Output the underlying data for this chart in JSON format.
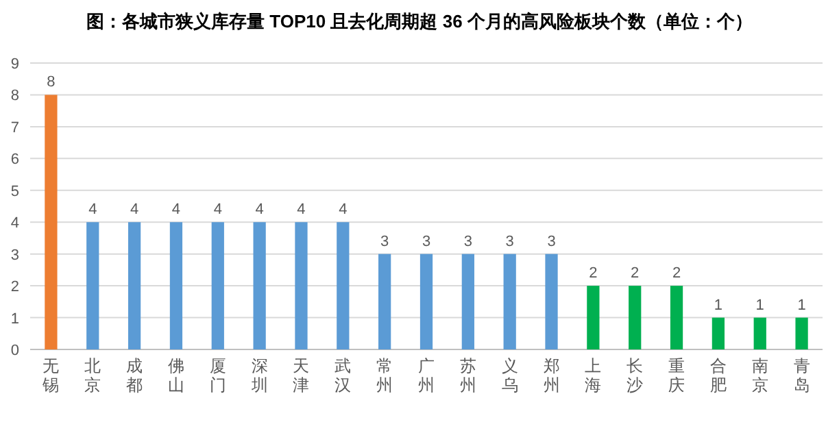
{
  "chart_data": {
    "type": "bar",
    "title": "图：各城市狭义库存量 TOP10 且去化周期超 36 个月的高风险板块个数（单位：个）",
    "categories": [
      "无锡",
      "北京",
      "成都",
      "佛山",
      "厦门",
      "深圳",
      "天津",
      "武汉",
      "常州",
      "广州",
      "苏州",
      "义乌",
      "郑州",
      "上海",
      "长沙",
      "重庆",
      "合肥",
      "南京",
      "青岛"
    ],
    "values": [
      8,
      4,
      4,
      4,
      4,
      4,
      4,
      4,
      3,
      3,
      3,
      3,
      3,
      2,
      2,
      2,
      1,
      1,
      1
    ],
    "colors": [
      "#ed7d31",
      "#5b9bd5",
      "#5b9bd5",
      "#5b9bd5",
      "#5b9bd5",
      "#5b9bd5",
      "#5b9bd5",
      "#5b9bd5",
      "#5b9bd5",
      "#5b9bd5",
      "#5b9bd5",
      "#5b9bd5",
      "#5b9bd5",
      "#00b050",
      "#00b050",
      "#00b050",
      "#00b050",
      "#00b050",
      "#00b050"
    ],
    "ylim": [
      0,
      9
    ],
    "yticks": [
      0,
      1,
      2,
      3,
      4,
      5,
      6,
      7,
      8,
      9
    ],
    "grid": "y",
    "data_labels": true
  }
}
